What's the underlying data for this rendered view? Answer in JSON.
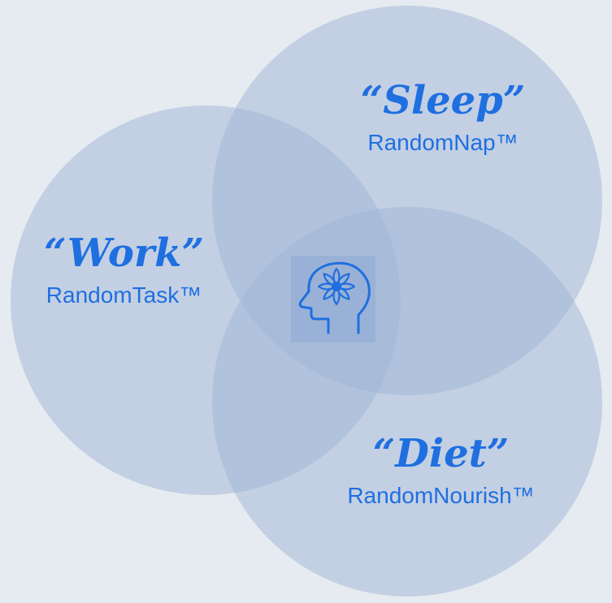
{
  "diagram": {
    "circles": [
      {
        "id": "sleep",
        "title": "“Sleep”",
        "subtitle": "RandomNap™"
      },
      {
        "id": "work",
        "title": "“Work”",
        "subtitle": "RandomTask™"
      },
      {
        "id": "diet",
        "title": "“Diet”",
        "subtitle": "RandomNourish™"
      }
    ],
    "center_icon": "head-lotus-icon",
    "colors": {
      "background": "#e6ebf1",
      "circle_fill": "#9fb5d6",
      "text": "#1f6fe0",
      "icon": "#1f6fe0"
    }
  }
}
